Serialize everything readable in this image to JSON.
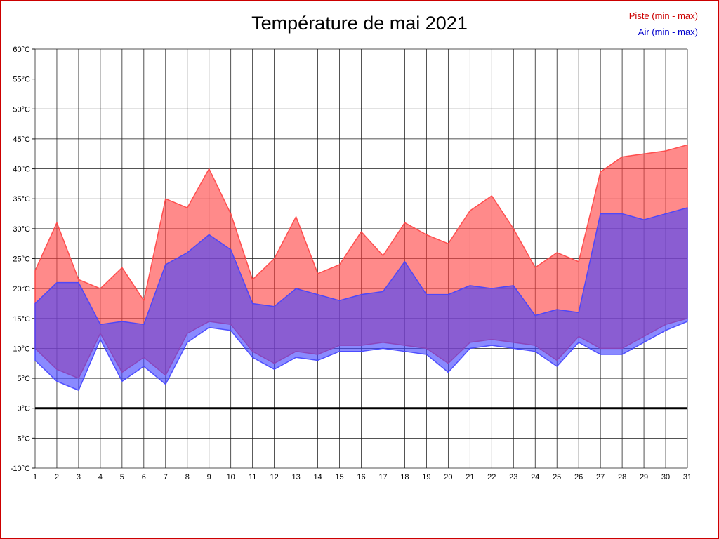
{
  "colors": {
    "piste_fill": "#ff4242",
    "air_fill": "#4242ff",
    "piste_text": "#cc0000",
    "air_text": "#0000cc",
    "page_border": "#cc0000",
    "grid": "#1a1a1a",
    "zero_line": "#000000"
  },
  "chart_data": {
    "type": "area",
    "title": "Température de mai 2021",
    "x": [
      1,
      2,
      3,
      4,
      5,
      6,
      7,
      8,
      9,
      10,
      11,
      12,
      13,
      14,
      15,
      16,
      17,
      18,
      19,
      20,
      21,
      22,
      23,
      24,
      25,
      26,
      27,
      28,
      29,
      30,
      31
    ],
    "xlabel": "",
    "ylabel": "",
    "ylim": [
      -10,
      60
    ],
    "ytick_step": 5,
    "ytick_suffix": "°C",
    "grid": true,
    "zero_line_at": 0,
    "legend_position": "top-right",
    "series": [
      {
        "name": "Piste (min - max)",
        "color": "#ff4242",
        "max": [
          23,
          31,
          21.5,
          20,
          23.5,
          18,
          35,
          33.5,
          40,
          32.5,
          21.5,
          25,
          32,
          22.5,
          24,
          29.5,
          25.5,
          31,
          29,
          27.5,
          33,
          35.5,
          30,
          23.5,
          26,
          24.5,
          39.5,
          42,
          42.5,
          43,
          44
        ],
        "min": [
          10,
          6.5,
          5,
          12.5,
          6,
          8.5,
          5.5,
          12.5,
          14.5,
          14,
          9.5,
          7.5,
          9.5,
          9,
          10.5,
          10.5,
          11,
          10.5,
          10,
          7.5,
          11,
          11.5,
          11,
          10.5,
          8,
          12,
          10,
          10,
          12,
          14,
          15
        ]
      },
      {
        "name": "Air (min - max)",
        "color": "#4242ff",
        "max": [
          17.5,
          21,
          21,
          14,
          14.5,
          14,
          24,
          26,
          29,
          26.5,
          17.5,
          17,
          20,
          19,
          18,
          19,
          19.5,
          24.5,
          19,
          19,
          20.5,
          20,
          20.5,
          15.5,
          16.5,
          16,
          32.5,
          32.5,
          31.5,
          32.5,
          33.5
        ],
        "min": [
          8,
          4.5,
          3,
          11.5,
          4.5,
          7,
          4,
          11,
          13.5,
          13,
          8.5,
          6.5,
          8.5,
          8,
          9.5,
          9.5,
          10,
          9.5,
          9,
          6,
          10,
          10.5,
          10,
          9.5,
          7,
          11,
          9,
          9,
          11,
          13,
          14.5
        ]
      }
    ]
  }
}
